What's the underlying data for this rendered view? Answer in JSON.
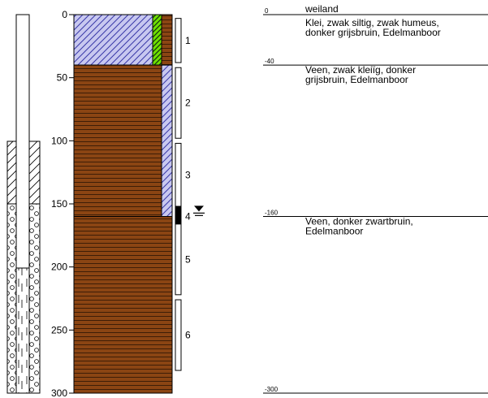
{
  "depth_axis": {
    "ticks": [
      "0",
      "50",
      "100",
      "150",
      "200",
      "250",
      "300"
    ],
    "tick_values": [
      0,
      50,
      100,
      150,
      200,
      250,
      300
    ],
    "max_depth": 300
  },
  "samples": [
    {
      "label": "1",
      "top": 3,
      "bottom": 38,
      "filled": false
    },
    {
      "label": "2",
      "top": 42,
      "bottom": 98,
      "filled": false
    },
    {
      "label": "3",
      "top": 102,
      "bottom": 152,
      "filled": false
    },
    {
      "label": "4",
      "top": 152,
      "bottom": 168,
      "filled": true
    },
    {
      "label": "5",
      "top": 166,
      "bottom": 222,
      "filled": false
    },
    {
      "label": "6",
      "top": 226,
      "bottom": 282,
      "filled": false
    }
  ],
  "groundwater_level_depth": 156,
  "layers": [
    {
      "top": 0,
      "bottom": 40,
      "material": "klei",
      "color": "#c8c8f0"
    },
    {
      "top": 40,
      "bottom": 160,
      "material": "veen",
      "color": "#8b4513"
    },
    {
      "top": 160,
      "bottom": 300,
      "material": "veen",
      "color": "#8b4513"
    }
  ],
  "descriptions": [
    {
      "depth_label": "0",
      "depth": 0,
      "lines": [
        "weiland",
        "Klei, zwak siltig, zwak humeus,",
        "donker grijsbruin, Edelmanboor"
      ]
    },
    {
      "depth_label": "-40",
      "depth": 40,
      "lines": [
        "Veen, zwak kleiïg, donker",
        "grijsbruin, Edelmanboor"
      ]
    },
    {
      "depth_label": "-160",
      "depth": 160,
      "lines": [
        "Veen, donker zwartbruin,",
        "Edelmanboor"
      ]
    },
    {
      "depth_label": "-300",
      "depth": 300,
      "lines": []
    }
  ]
}
